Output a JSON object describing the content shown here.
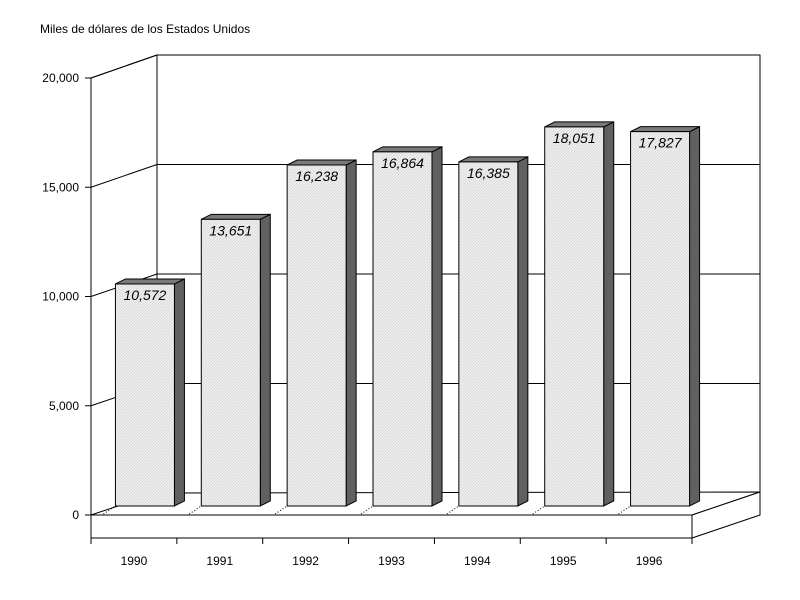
{
  "chart_data": {
    "type": "bar",
    "title": "",
    "ylabel": "Miles de dólares de los Estados Unidos",
    "xlabel": "",
    "categories": [
      "1990",
      "1991",
      "1992",
      "1993",
      "1994",
      "1995",
      "1996"
    ],
    "values": [
      10572,
      13651,
      16238,
      16864,
      16385,
      18051,
      17827
    ],
    "data_labels": [
      "10,572",
      "13,651",
      "16,238",
      "16,864",
      "16,385",
      "18,051",
      "17,827"
    ],
    "ylim": [
      0,
      20000
    ],
    "yticks": [
      0,
      5000,
      10000,
      15000,
      20000
    ],
    "ytick_labels": [
      "0",
      "5,000",
      "10,000",
      "15,000",
      "20,000"
    ],
    "grid": true,
    "style": "3d",
    "bar_color": "#ececec",
    "bar_side_color": "#606060",
    "bar_top_color": "#7a7a7a"
  }
}
